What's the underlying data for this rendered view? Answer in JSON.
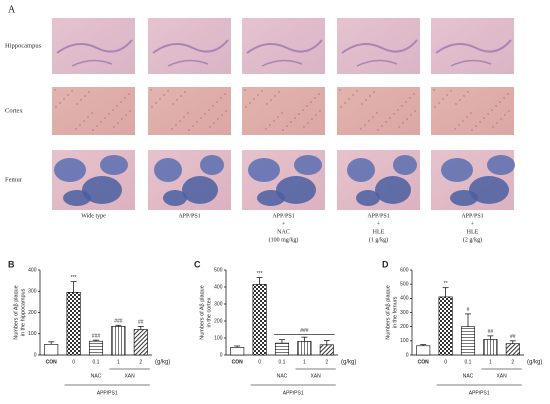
{
  "panel_a": {
    "label": "A",
    "rows": [
      "Hippocampus",
      "Cortex",
      "Femur"
    ],
    "columns": [
      [
        "Wide type"
      ],
      [
        "APP/PS1"
      ],
      [
        "APP/PS1",
        "+",
        "NAC",
        "(100 mg/kg)"
      ],
      [
        "APP/PS1",
        "+",
        "HLE",
        "(1 g/kg)"
      ],
      [
        "APP/PS1",
        "+",
        "HLE",
        "(2 g/kg)"
      ]
    ]
  },
  "chart_data": [
    {
      "type": "bar",
      "panel": "B",
      "ylabel": [
        "Numbers of Aβ plaque",
        "in the hippocampus"
      ],
      "categories": [
        "CON",
        "0",
        "0.1",
        "1",
        "2"
      ],
      "values": [
        50,
        295,
        65,
        135,
        120
      ],
      "errors": [
        12,
        50,
        5,
        5,
        15
      ],
      "ylim": [
        0,
        400
      ],
      "yticks": [
        0,
        100,
        200,
        300,
        400
      ],
      "unit_label": "(g/kg)",
      "groups": [
        {
          "name": "NAC",
          "categories": [
            "0.1"
          ]
        },
        {
          "name": "XAN",
          "categories": [
            "1",
            "2"
          ]
        },
        {
          "name": "APP/PS1",
          "categories": [
            "0",
            "0.1",
            "1",
            "2"
          ]
        }
      ],
      "annotations": [
        {
          "x": [
            "0"
          ],
          "text": "***"
        },
        {
          "x": [
            "0.1"
          ],
          "text": "###"
        },
        {
          "x": [
            "1"
          ],
          "text": "###"
        },
        {
          "x": [
            "2"
          ],
          "text": "##"
        }
      ]
    },
    {
      "type": "bar",
      "panel": "C",
      "ylabel": [
        "Numbers of Aβ plaque",
        "in the cortex"
      ],
      "categories": [
        "CON",
        "0",
        "0.1",
        "1",
        "2"
      ],
      "values": [
        45,
        415,
        70,
        80,
        60
      ],
      "errors": [
        8,
        40,
        20,
        25,
        25
      ],
      "ylim": [
        0,
        500
      ],
      "yticks": [
        0,
        100,
        200,
        300,
        400,
        500
      ],
      "unit_label": "(g/kg)",
      "groups": [
        {
          "name": "NAC",
          "categories": [
            "0.1"
          ]
        },
        {
          "name": "XAN",
          "categories": [
            "1",
            "2"
          ]
        },
        {
          "name": "APP/PS1",
          "categories": [
            "0",
            "0.1",
            "1",
            "2"
          ]
        }
      ],
      "annotations": [
        {
          "x": [
            "0"
          ],
          "text": "***"
        },
        {
          "x": [
            "0.1",
            "2"
          ],
          "text": "###"
        }
      ]
    },
    {
      "type": "bar",
      "panel": "D",
      "ylabel": [
        "Numbers of Aβ plaque",
        "in the femurs"
      ],
      "categories": [
        "CON",
        "0",
        "0.1",
        "1",
        "2"
      ],
      "values": [
        65,
        410,
        200,
        110,
        80
      ],
      "errors": [
        8,
        65,
        90,
        25,
        20
      ],
      "ylim": [
        0,
        600
      ],
      "yticks": [
        0,
        100,
        200,
        300,
        400,
        500,
        600
      ],
      "unit_label": "(g/kg)",
      "groups": [
        {
          "name": "NAC",
          "categories": [
            "0.1"
          ]
        },
        {
          "name": "XAN",
          "categories": [
            "1",
            "2"
          ]
        },
        {
          "name": "APP/PS1",
          "categories": [
            "0",
            "0.1",
            "1",
            "2"
          ]
        }
      ],
      "annotations": [
        {
          "x": [
            "0"
          ],
          "text": "**"
        },
        {
          "x": [
            "0.1"
          ],
          "text": "#"
        },
        {
          "x": [
            "1"
          ],
          "text": "##"
        },
        {
          "x": [
            "2"
          ],
          "text": "##"
        }
      ]
    }
  ]
}
